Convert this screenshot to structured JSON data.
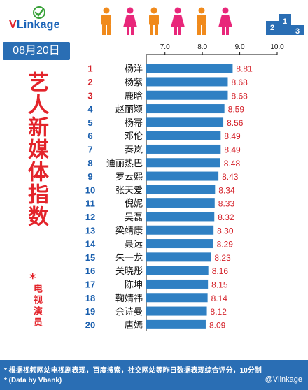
{
  "brand": {
    "logo_text": "Linkage",
    "logo_v": "V"
  },
  "date": "08月20日",
  "side_title": "艺人新媒体指数",
  "side_star": "*",
  "side_subtitle": "电视演员",
  "footnote": "* 根据视频网站电视剧表现，百度搜索，社交网站等昨日数据表现综合评分，10分制",
  "footnote_source": "* (Data by Vbank)",
  "watermark": "@Vlinkage",
  "colors": {
    "bar": "#2f80c3",
    "accent_red": "#d4222a",
    "footer_blue": "#2a6eb4"
  },
  "chart_data": {
    "type": "bar",
    "orientation": "horizontal",
    "xlim": [
      6.5,
      10.0
    ],
    "x_ticks": [
      "7.0",
      "8.0",
      "9.0",
      "10.0"
    ],
    "x_tick_values": [
      7.0,
      8.0,
      9.0,
      10.0
    ],
    "ranks": [
      "1",
      "2",
      "3",
      "4",
      "5",
      "6",
      "7",
      "8",
      "9",
      "10",
      "11",
      "12",
      "13",
      "14",
      "15",
      "16",
      "17",
      "18",
      "19",
      "20"
    ],
    "categories": [
      "杨洋",
      "杨紫",
      "鹿晗",
      "赵丽颖",
      "杨幂",
      "邓伦",
      "秦岚",
      "迪丽热巴",
      "罗云熙",
      "张天爱",
      "倪妮",
      "吴磊",
      "梁靖康",
      "聂远",
      "朱一龙",
      "关晓彤",
      "陈坤",
      "鞠婧祎",
      "佘诗曼",
      "唐嫣"
    ],
    "values": [
      8.81,
      8.68,
      8.68,
      8.59,
      8.56,
      8.49,
      8.49,
      8.48,
      8.43,
      8.34,
      8.33,
      8.32,
      8.3,
      8.29,
      8.23,
      8.16,
      8.15,
      8.14,
      8.12,
      8.09
    ],
    "value_labels": [
      "8.81",
      "8.68",
      "8.68",
      "8.59",
      "8.56",
      "8.49",
      "8.49",
      "8.48",
      "8.43",
      "8.34",
      "8.33",
      "8.32",
      "8.30",
      "8.29",
      "8.23",
      "8.16",
      "8.15",
      "8.14",
      "8.12",
      "8.09"
    ]
  }
}
